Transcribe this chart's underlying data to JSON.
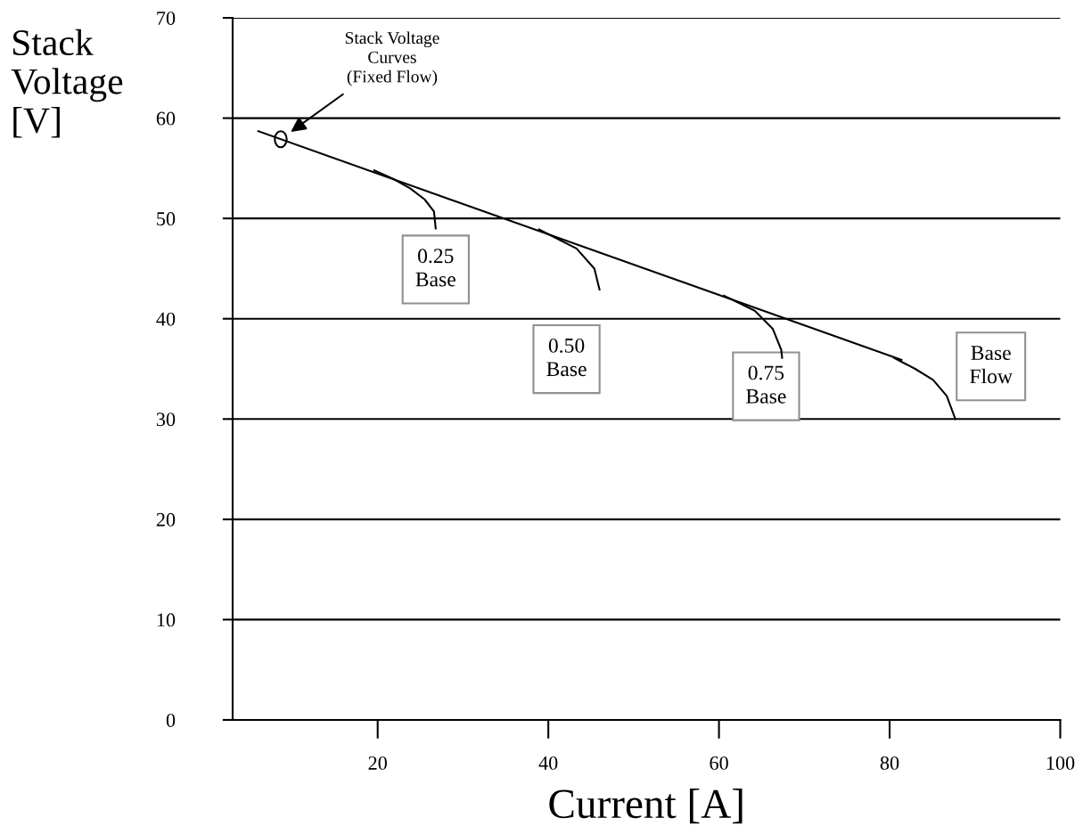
{
  "chart_data": {
    "type": "line",
    "xlabel": "Current [A]",
    "ylabel": "Stack\nVoltage\n[V]",
    "xlim": [
      3,
      100
    ],
    "xticks": [
      20,
      40,
      60,
      80,
      100
    ],
    "ylim": [
      0,
      70
    ],
    "yticks": [
      0,
      10,
      20,
      30,
      40,
      50,
      60,
      70
    ],
    "grid": "y",
    "marker": "none",
    "line_style": "solid",
    "series": [
      {
        "color": "#000000",
        "x": [
          6.0,
          81.4
        ],
        "values": [
          58.7,
          35.9
        ]
      },
      {
        "name": "0.25\nBase",
        "color": "#000000",
        "x": [
          19.6,
          21.7,
          23.8,
          25.5,
          26.6,
          26.8
        ],
        "values": [
          54.8,
          54.0,
          53.0,
          51.9,
          50.7,
          49.0
        ]
      },
      {
        "name": "0.50\nBase",
        "color": "#000000",
        "x": [
          38.9,
          43.3,
          45.4,
          46.0
        ],
        "values": [
          48.9,
          47.0,
          45.0,
          42.9
        ]
      },
      {
        "name": "0.75\nBase",
        "color": "#000000",
        "x": [
          60.6,
          64.2,
          66.3,
          67.3,
          67.4
        ],
        "values": [
          42.3,
          40.8,
          39.0,
          36.9,
          36.1
        ]
      },
      {
        "name": "Base\nFlow",
        "color": "#000000",
        "x": [
          80.5,
          83.0,
          85.1,
          86.7,
          87.7
        ],
        "values": [
          36.1,
          35.0,
          33.9,
          32.3,
          30.0
        ]
      }
    ],
    "annotations": [
      "Stack Voltage\nCurves\n(Fixed Flow)"
    ]
  }
}
